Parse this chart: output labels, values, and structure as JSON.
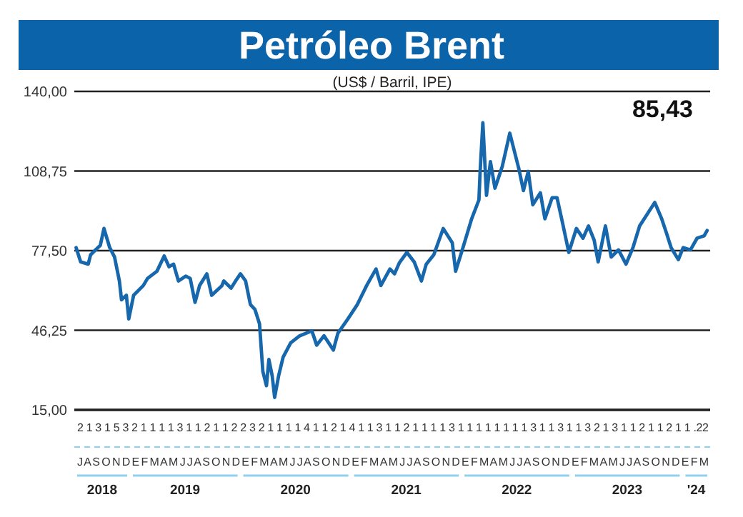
{
  "chart_data": {
    "type": "line",
    "title": "Petróleo Brent",
    "subtitle": "(US$ / Barril, IPE)",
    "xlim": [
      "2018-07-01",
      "2024-04-01"
    ],
    "xticks": [
      {
        "value": "2018-10-01",
        "label": "2018"
      },
      {
        "value": "2019-07-02",
        "label": "2019"
      },
      {
        "value": "2020-07-01",
        "label": "2020"
      },
      {
        "value": "2021-07-02",
        "label": "2021"
      },
      {
        "value": "2022-07-02",
        "label": "2022"
      },
      {
        "value": "2023-07-02",
        "label": "2023"
      },
      {
        "value": "2024-02-15",
        "label": "'24"
      }
    ],
    "ylim": [
      15,
      140
    ],
    "yticks": [
      {
        "value": 15,
        "label": "15,00"
      },
      {
        "value": 46.25,
        "label": "46,25"
      },
      {
        "value": 77.5,
        "label": "77,50"
      },
      {
        "value": 108.75,
        "label": "108,75"
      },
      {
        "value": 140,
        "label": "140,00"
      }
    ],
    "grid": "y",
    "series": [
      {
        "color": "#1767ad",
        "x": [
          "2018-07-07",
          "2018-07-22",
          "2018-08-16",
          "2018-08-24",
          "2018-09-09",
          "2018-09-25",
          "2018-10-07",
          "2018-10-26",
          "2018-11-11",
          "2018-11-27",
          "2018-12-04",
          "2018-12-20",
          "2018-12-28",
          "2019-01-13",
          "2019-02-14",
          "2019-02-28",
          "2019-03-31",
          "2019-04-24",
          "2019-05-10",
          "2019-05-25",
          "2019-06-10",
          "2019-07-04",
          "2019-07-19",
          "2019-08-04",
          "2019-08-19",
          "2019-09-12",
          "2019-09-28",
          "2019-10-15",
          "2019-11-01",
          "2019-11-07",
          "2019-12-01",
          "2019-12-16",
          "2020-01-01",
          "2020-01-18",
          "2020-02-03",
          "2020-02-18",
          "2020-03-04",
          "2020-03-15",
          "2020-03-27",
          "2020-04-04",
          "2020-04-15",
          "2020-04-23",
          "2020-05-06",
          "2020-05-21",
          "2020-06-15",
          "2020-07-15",
          "2020-08-24",
          "2020-09-09",
          "2020-10-03",
          "2020-11-03",
          "2020-11-18",
          "2020-12-21",
          "2021-01-21",
          "2021-02-21",
          "2021-03-24",
          "2021-04-09",
          "2021-05-09",
          "2021-05-24",
          "2021-06-09",
          "2021-07-04",
          "2021-07-28",
          "2021-08-21",
          "2021-09-06",
          "2021-10-01",
          "2021-11-01",
          "2021-12-01",
          "2021-12-12",
          "2022-01-03",
          "2022-02-03",
          "2022-02-27",
          "2022-03-03",
          "2022-03-12",
          "2022-03-24",
          "2022-04-06",
          "2022-04-21",
          "2022-05-15",
          "2022-06-09",
          "2022-07-09",
          "2022-07-24",
          "2022-08-09",
          "2022-08-24",
          "2022-09-18",
          "2022-10-03",
          "2022-10-27",
          "2022-11-12",
          "2022-12-01",
          "2022-12-21",
          "2023-01-15",
          "2023-02-06",
          "2023-02-24",
          "2023-03-15",
          "2023-03-28",
          "2023-04-21",
          "2023-05-10",
          "2023-06-03",
          "2023-06-28",
          "2023-07-21",
          "2023-08-12",
          "2023-09-06",
          "2023-10-01",
          "2023-10-24",
          "2023-11-09",
          "2023-11-24",
          "2023-12-18",
          "2024-01-03",
          "2024-01-27",
          "2024-02-18",
          "2024-03-12",
          "2024-03-22"
        ],
        "values": [
          78.7,
          73.1,
          72.2,
          75.9,
          77.8,
          79.6,
          86.2,
          78.7,
          75,
          65.6,
          58.2,
          60,
          50.7,
          60,
          63.8,
          66.6,
          69.4,
          75.4,
          71.2,
          72.2,
          65.6,
          67.5,
          66.6,
          57.2,
          63.8,
          68.4,
          60,
          61.9,
          63.8,
          65.6,
          62.8,
          65.6,
          68.4,
          65.6,
          56.3,
          54.4,
          48.8,
          30.1,
          24.5,
          34.8,
          28.3,
          19.9,
          28.3,
          35.7,
          41.3,
          44.1,
          46,
          40.4,
          44.1,
          38.5,
          45.1,
          50.7,
          56.3,
          63.8,
          70.3,
          63.8,
          70.3,
          68.4,
          72.7,
          76.8,
          73.1,
          65.6,
          72.2,
          75.9,
          86.2,
          80.6,
          69.4,
          77.8,
          90,
          97.4,
          108.6,
          127.7,
          99.2,
          112.4,
          102,
          110.5,
          123.6,
          109.6,
          101.1,
          108.6,
          95.5,
          100.2,
          90,
          98.3,
          98.3,
          88,
          76.8,
          86.2,
          82.4,
          87.2,
          81.5,
          73.1,
          87.2,
          75,
          77.8,
          72.2,
          78.7,
          87.2,
          91.8,
          96.4,
          90,
          84.3,
          78.7,
          74,
          78.7,
          77.8,
          82.4,
          83.3,
          85.4
        ]
      }
    ],
    "annotations": [
      "85,43",
      "2 1 3 1 5 3 2 1 1 1 1 3 1 1 2 1 1 2 2 3 2 1 1 1 1 4 1 1 2 1 4 1 1 3 1 1 2 1 1 1 1 3 1 1 1 1 1 1 1 1 3 1 1 3 1 1 3 2 1 3 1 1 2 1 1 2 1 1 .22",
      "J A S O N D E F M A M J J A S O N D E F M A M J J A S O N D E F M A M J J A S O N D E F M A M J J A S O N D E F M A M J J A S O N D E F M"
    ]
  }
}
